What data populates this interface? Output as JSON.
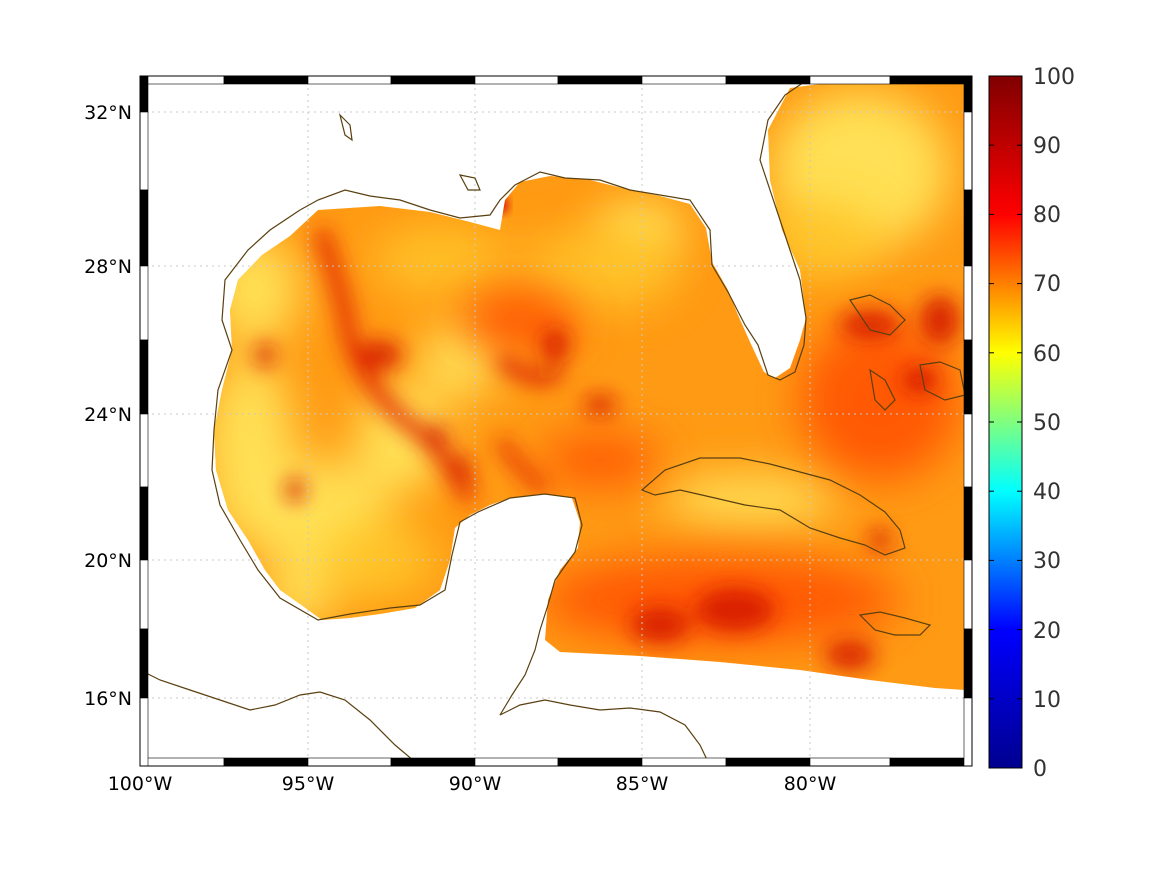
{
  "map": {
    "x_ticks": [
      "100°W",
      "95°W",
      "90°W",
      "85°W",
      "80°W"
    ],
    "y_ticks": [
      "32°N",
      "28°N",
      "24°N",
      "20°N",
      "16°N"
    ]
  },
  "colorbar": {
    "ticks": [
      "100",
      "90",
      "80",
      "70",
      "60",
      "50",
      "40",
      "30",
      "20",
      "10",
      "0"
    ],
    "colormap": [
      "#00008f",
      "#0000ff",
      "#00ffff",
      "#ffff00",
      "#ff0000",
      "#800000"
    ]
  },
  "colors": {
    "coastline": "#5a4010",
    "field_low": "#ffe45a",
    "field_mid": "#ff9a14",
    "field_high": "#b80000"
  }
}
